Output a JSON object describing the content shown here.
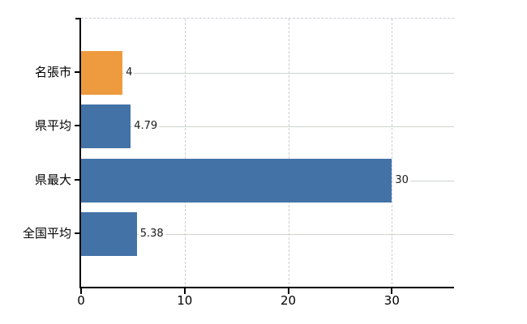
{
  "chart_data": {
    "type": "bar",
    "orientation": "horizontal",
    "title": "",
    "categories": [
      "名張市",
      "県平均",
      "県最大",
      "全国平均"
    ],
    "values": [
      4,
      4.79,
      30,
      5.38
    ],
    "value_labels": [
      "4",
      "4.79",
      "30",
      "5.38"
    ],
    "bar_colors": [
      "#ed9b3e",
      "#4372a7",
      "#4372a7",
      "#4372a7"
    ],
    "x_tick_values": [
      0,
      10,
      20,
      30
    ],
    "x_tick_labels": [
      "0",
      "10",
      "20",
      "30"
    ],
    "xlim": [
      0,
      36
    ],
    "grid": true,
    "legend_position": "none",
    "colors": {
      "bar_default": "#4372a7",
      "bar_highlight": "#ed9b3e",
      "axis": "#000000",
      "dashed_grid": "#ccccd6",
      "row_guide": "#ccd5cc",
      "background": "#ffffff",
      "text": "#1a1a1a"
    }
  }
}
